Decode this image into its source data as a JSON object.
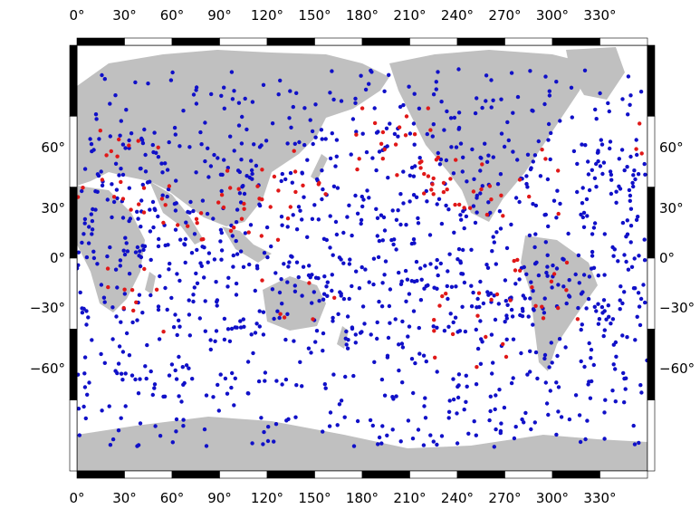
{
  "map": {
    "projection": "Miller cylindrical",
    "lon_range": [
      0,
      360
    ],
    "lat_range": [
      -90,
      90
    ],
    "colors": {
      "land": "#c0c0c0",
      "ocean": "#ffffff",
      "frame_dark": "#000000",
      "frame_light": "#ffffff",
      "station_blue": "#1010c8",
      "station_red": "#e01818"
    },
    "lon_ticks": [
      "0°",
      "30°",
      "60°",
      "90°",
      "120°",
      "150°",
      "180°",
      "210°",
      "240°",
      "270°",
      "300°",
      "330°"
    ],
    "lat_ticks_left": [
      "60°",
      "30°",
      "0°",
      "−30°",
      "−60°"
    ],
    "lat_ticks_right": [
      "60°",
      "30°",
      "0°",
      "−30°",
      "−60°"
    ],
    "lon_tick_values": [
      0,
      30,
      60,
      90,
      120,
      150,
      180,
      210,
      240,
      270,
      300,
      330
    ],
    "lat_tick_values": [
      60,
      30,
      0,
      -30,
      -60
    ],
    "markers": {
      "blue_count_approx": 1250,
      "red_count_approx": 160,
      "note_on_legend": ""
    }
  }
}
